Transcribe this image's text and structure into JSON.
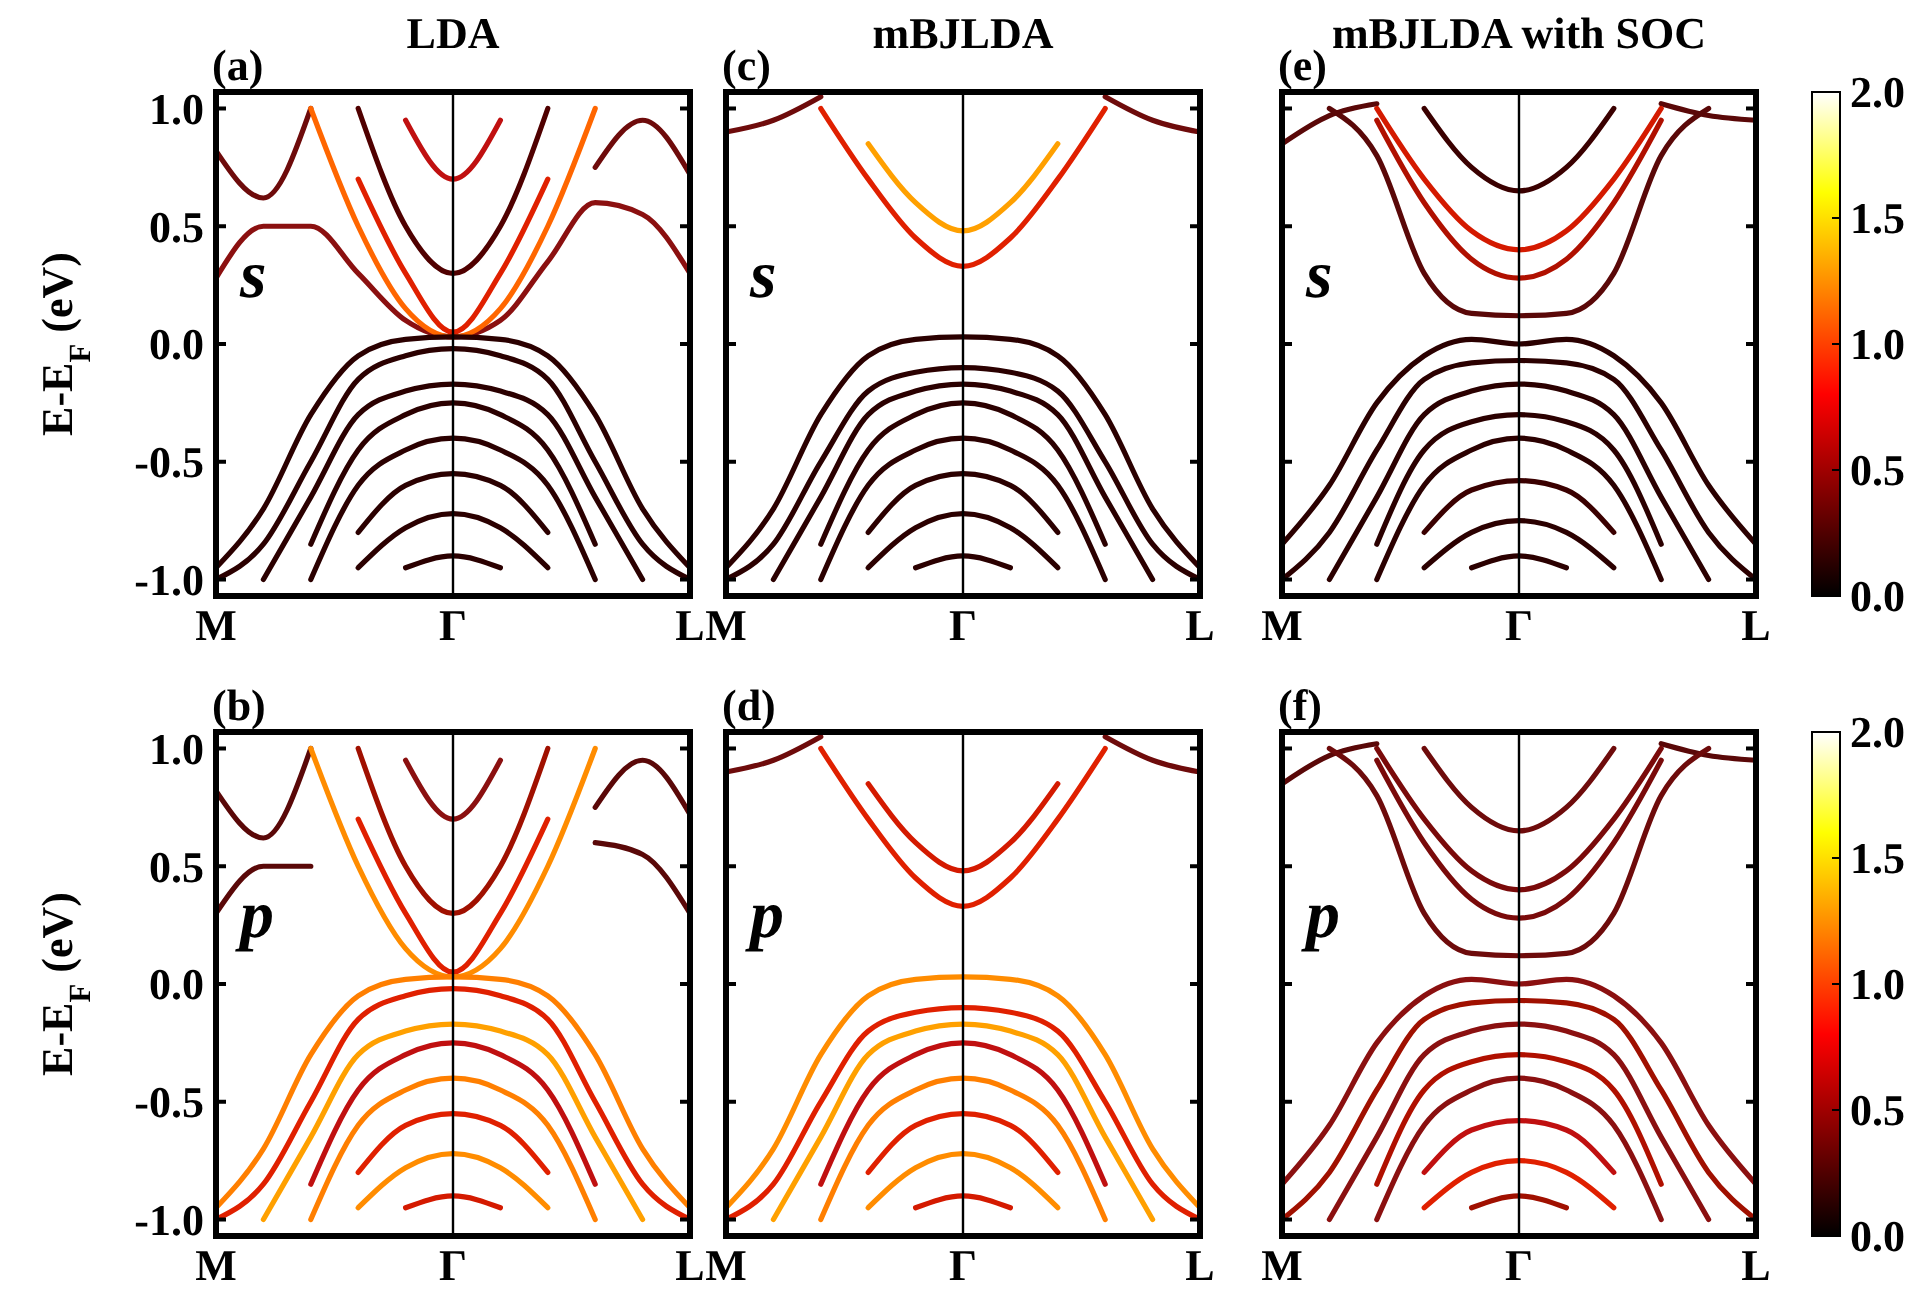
{
  "chart_data": [
    {
      "type": "line",
      "title": "LDA",
      "ylabel": "E-E$_{F}$ (eV)",
      "annotations": [
        "(a)",
        "s"
      ],
      "categories": [
        "M",
        null,
        null,
        null,
        null,
        "Γ",
        null,
        null,
        null,
        null,
        "L"
      ],
      "ylim": [
        -1.07,
        1.07
      ],
      "yticks": [
        {
          "value": 1,
          "label": "1.0"
        },
        {
          "value": 0.5,
          "label": "0.5"
        },
        {
          "value": 0,
          "label": "0.0"
        },
        {
          "value": -0.5,
          "label": "-0.5"
        },
        {
          "value": -1,
          "label": "-1.0"
        }
      ],
      "ref_lines": [
        {
          "axis": "x",
          "value": "Γ",
          "label": null,
          "color": "#000000"
        }
      ],
      "grid": false,
      "series": [
        {
          "color": "#6e0b0b",
          "values": [
            0.82,
            0.62,
            1.0,
            null,
            null,
            null,
            null,
            null,
            0.75,
            0.95,
            0.72
          ]
        },
        {
          "color": "#8b1010",
          "values": [
            0.28,
            0.5,
            0.5,
            0.3,
            0.1,
            0.03,
            0.1,
            0.35,
            0.6,
            0.55,
            0.3
          ]
        },
        {
          "color": "#ff6600",
          "values": [
            null,
            null,
            1.0,
            0.5,
            0.15,
            0.03,
            0.15,
            0.5,
            1.0,
            null,
            null
          ]
        },
        {
          "color": "#e02000",
          "values": [
            null,
            null,
            null,
            0.7,
            0.3,
            0.05,
            0.3,
            0.7,
            null,
            null,
            null
          ]
        },
        {
          "color": "#500000",
          "values": [
            null,
            null,
            null,
            1.0,
            0.5,
            0.3,
            0.5,
            1.0,
            null,
            null,
            null
          ]
        },
        {
          "color": "#c01010",
          "values": [
            null,
            null,
            null,
            null,
            0.95,
            0.7,
            0.95,
            null,
            null,
            null,
            null
          ]
        },
        {
          "color": "#2b0000",
          "values": [
            -0.95,
            -0.7,
            -0.3,
            -0.05,
            0.02,
            0.03,
            0.02,
            -0.05,
            -0.3,
            -0.7,
            -0.95
          ]
        },
        {
          "color": "#2b0000",
          "values": [
            -1.0,
            -0.85,
            -0.5,
            -0.15,
            -0.05,
            -0.02,
            -0.05,
            -0.15,
            -0.5,
            -0.85,
            -1.0
          ]
        },
        {
          "color": "#2b0000",
          "values": [
            null,
            -1.0,
            -0.65,
            -0.3,
            -0.2,
            -0.17,
            -0.2,
            -0.3,
            -0.65,
            -1.0,
            null
          ]
        },
        {
          "color": "#2b0000",
          "values": [
            null,
            null,
            -0.85,
            -0.45,
            -0.3,
            -0.25,
            -0.3,
            -0.45,
            -0.85,
            null,
            null
          ]
        },
        {
          "color": "#2b0000",
          "values": [
            null,
            null,
            -1.0,
            -0.6,
            -0.45,
            -0.4,
            -0.45,
            -0.6,
            -1.0,
            null,
            null
          ]
        },
        {
          "color": "#2b0000",
          "values": [
            null,
            null,
            null,
            -0.8,
            -0.6,
            -0.55,
            -0.6,
            -0.8,
            null,
            null,
            null
          ]
        },
        {
          "color": "#2b0000",
          "values": [
            null,
            null,
            null,
            -0.95,
            -0.78,
            -0.72,
            -0.78,
            -0.95,
            null,
            null,
            null
          ]
        },
        {
          "color": "#2b0000",
          "values": [
            null,
            null,
            null,
            null,
            -0.95,
            -0.9,
            -0.95,
            null,
            null,
            null,
            null
          ]
        }
      ]
    },
    {
      "type": "line",
      "title": "mBJLDA",
      "annotations": [
        "(c)",
        "s"
      ],
      "categories": [
        "M",
        null,
        null,
        null,
        null,
        "Γ",
        null,
        null,
        null,
        null,
        "L"
      ],
      "ylim": [
        -1.07,
        1.07
      ],
      "yticks": [
        {
          "value": 1,
          "label": null
        },
        {
          "value": 0.5,
          "label": null
        },
        {
          "value": 0,
          "label": null
        },
        {
          "value": -0.5,
          "label": null
        },
        {
          "value": -1,
          "label": null
        }
      ],
      "tick_labels": "x",
      "ref_lines": [
        {
          "axis": "x",
          "value": "Γ",
          "label": null,
          "color": "#000000"
        }
      ],
      "grid": false,
      "series": [
        {
          "color": "#6e0b0b",
          "values": [
            0.9,
            0.95,
            1.05,
            null,
            null,
            null,
            null,
            null,
            1.05,
            0.95,
            0.9
          ]
        },
        {
          "color": "#e02000",
          "values": [
            null,
            null,
            1.0,
            0.7,
            0.45,
            0.33,
            0.45,
            0.7,
            1.0,
            null,
            null
          ]
        },
        {
          "color": "#ffa000",
          "values": [
            null,
            null,
            null,
            0.85,
            0.6,
            0.48,
            0.6,
            0.85,
            null,
            null,
            null
          ]
        },
        {
          "color": "#2b0000",
          "values": [
            -0.95,
            -0.7,
            -0.3,
            -0.05,
            0.02,
            0.03,
            0.02,
            -0.05,
            -0.3,
            -0.7,
            -0.95
          ]
        },
        {
          "color": "#2b0000",
          "values": [
            -1.0,
            -0.85,
            -0.5,
            -0.2,
            -0.12,
            -0.1,
            -0.12,
            -0.2,
            -0.5,
            -0.85,
            -1.0
          ]
        },
        {
          "color": "#2b0000",
          "values": [
            null,
            -1.0,
            -0.65,
            -0.3,
            -0.2,
            -0.17,
            -0.2,
            -0.3,
            -0.65,
            -1.0,
            null
          ]
        },
        {
          "color": "#2b0000",
          "values": [
            null,
            null,
            -0.85,
            -0.45,
            -0.3,
            -0.25,
            -0.3,
            -0.45,
            -0.85,
            null,
            null
          ]
        },
        {
          "color": "#2b0000",
          "values": [
            null,
            null,
            -1.0,
            -0.6,
            -0.45,
            -0.4,
            -0.45,
            -0.6,
            -1.0,
            null,
            null
          ]
        },
        {
          "color": "#2b0000",
          "values": [
            null,
            null,
            null,
            -0.8,
            -0.6,
            -0.55,
            -0.6,
            -0.8,
            null,
            null,
            null
          ]
        },
        {
          "color": "#2b0000",
          "values": [
            null,
            null,
            null,
            -0.95,
            -0.78,
            -0.72,
            -0.78,
            -0.95,
            null,
            null,
            null
          ]
        },
        {
          "color": "#2b0000",
          "values": [
            null,
            null,
            null,
            null,
            -0.95,
            -0.9,
            -0.95,
            null,
            null,
            null,
            null
          ]
        }
      ]
    },
    {
      "type": "line",
      "title": "mBJLDA with SOC",
      "annotations": [
        "(e)",
        "s"
      ],
      "categories": [
        "M",
        null,
        null,
        null,
        null,
        "Γ",
        null,
        null,
        null,
        null,
        "L"
      ],
      "ylim": [
        -1.07,
        1.07
      ],
      "yticks": [
        {
          "value": 1,
          "label": null
        },
        {
          "value": 0.5,
          "label": null
        },
        {
          "value": 0,
          "label": null
        },
        {
          "value": -0.5,
          "label": null
        },
        {
          "value": -1,
          "label": null
        }
      ],
      "tick_labels": "x",
      "clim": [
        0,
        2
      ],
      "cticks": [
        {
          "value": 0,
          "label": "0.0"
        },
        {
          "value": 0.5,
          "label": "0.5"
        },
        {
          "value": 1,
          "label": "1.0"
        },
        {
          "value": 1.5,
          "label": "1.5"
        },
        {
          "value": 2,
          "label": "2.0"
        }
      ],
      "ref_lines": [
        {
          "axis": "x",
          "value": "Γ",
          "label": null,
          "color": "#000000"
        }
      ],
      "grid": false,
      "series": [
        {
          "color": "#5a0808",
          "values": [
            0.85,
            0.97,
            1.02,
            null,
            null,
            null,
            null,
            null,
            1.02,
            0.97,
            0.95
          ]
        },
        {
          "color": "#3a0000",
          "values": [
            null,
            null,
            null,
            1.0,
            0.75,
            0.65,
            0.75,
            1.0,
            null,
            null,
            null
          ]
        },
        {
          "color": "#d41a00",
          "values": [
            null,
            null,
            1.0,
            0.7,
            0.48,
            0.4,
            0.48,
            0.7,
            1.0,
            null,
            null
          ]
        },
        {
          "color": "#b01000",
          "values": [
            null,
            null,
            0.95,
            0.6,
            0.36,
            0.28,
            0.36,
            0.6,
            0.95,
            null,
            null
          ]
        },
        {
          "color": "#5a0808",
          "values": [
            null,
            1.0,
            0.8,
            0.3,
            0.13,
            0.12,
            0.13,
            0.3,
            0.8,
            1.0,
            null
          ]
        },
        {
          "color": "#2b0000",
          "values": [
            -0.85,
            -0.6,
            -0.25,
            -0.05,
            0.02,
            0.0,
            0.02,
            -0.05,
            -0.25,
            -0.6,
            -0.85
          ]
        },
        {
          "color": "#2b0000",
          "values": [
            -1.0,
            -0.8,
            -0.45,
            -0.15,
            -0.08,
            -0.07,
            -0.08,
            -0.15,
            -0.45,
            -0.8,
            -1.0
          ]
        },
        {
          "color": "#2b0000",
          "values": [
            null,
            -1.0,
            -0.65,
            -0.3,
            -0.2,
            -0.17,
            -0.2,
            -0.3,
            -0.65,
            -1.0,
            null
          ]
        },
        {
          "color": "#2b0000",
          "values": [
            null,
            null,
            -0.85,
            -0.45,
            -0.33,
            -0.3,
            -0.33,
            -0.45,
            -0.85,
            null,
            null
          ]
        },
        {
          "color": "#2b0000",
          "values": [
            null,
            null,
            -1.0,
            -0.6,
            -0.45,
            -0.4,
            -0.45,
            -0.6,
            -1.0,
            null,
            null
          ]
        },
        {
          "color": "#3a0000",
          "values": [
            null,
            null,
            null,
            -0.8,
            -0.62,
            -0.58,
            -0.62,
            -0.8,
            null,
            null,
            null
          ]
        },
        {
          "color": "#2b0000",
          "values": [
            null,
            null,
            null,
            -0.95,
            -0.8,
            -0.75,
            -0.8,
            -0.95,
            null,
            null,
            null
          ]
        },
        {
          "color": "#2b0000",
          "values": [
            null,
            null,
            null,
            null,
            -0.95,
            -0.9,
            -0.95,
            null,
            null,
            null,
            null
          ]
        }
      ]
    },
    {
      "type": "line",
      "ylabel": "E-E$_{F}$ (eV)",
      "annotations": [
        "(b)",
        "p"
      ],
      "categories": [
        "M",
        null,
        null,
        null,
        null,
        "Γ",
        null,
        null,
        null,
        null,
        "L"
      ],
      "ylim": [
        -1.07,
        1.07
      ],
      "yticks": [
        {
          "value": 1,
          "label": "1.0"
        },
        {
          "value": 0.5,
          "label": "0.5"
        },
        {
          "value": 0,
          "label": "0.0"
        },
        {
          "value": -0.5,
          "label": "-0.5"
        },
        {
          "value": -1,
          "label": "-1.0"
        }
      ],
      "ref_lines": [
        {
          "axis": "x",
          "value": "Γ",
          "label": null,
          "color": "#000000"
        }
      ],
      "grid": false,
      "series": [
        {
          "color": "#5a0808",
          "values": [
            0.82,
            0.62,
            1.0,
            null,
            null,
            null,
            null,
            null,
            0.75,
            0.95,
            0.72
          ]
        },
        {
          "color": "#5a0808",
          "values": [
            0.3,
            0.5,
            0.5,
            null,
            null,
            null,
            null,
            null,
            0.6,
            0.55,
            0.3
          ]
        },
        {
          "color": "#ff8c00",
          "values": [
            null,
            null,
            1.0,
            0.5,
            0.15,
            0.03,
            0.15,
            0.5,
            1.0,
            null,
            null
          ]
        },
        {
          "color": "#e02000",
          "values": [
            null,
            null,
            null,
            0.7,
            0.3,
            0.05,
            0.3,
            0.7,
            null,
            null,
            null
          ]
        },
        {
          "color": "#a01000",
          "values": [
            null,
            null,
            null,
            1.0,
            0.5,
            0.3,
            0.5,
            1.0,
            null,
            null,
            null
          ]
        },
        {
          "color": "#8b1010",
          "values": [
            null,
            null,
            null,
            null,
            0.95,
            0.7,
            0.95,
            null,
            null,
            null,
            null
          ]
        },
        {
          "color": "#ff7f00",
          "values": [
            -0.95,
            -0.7,
            -0.3,
            -0.05,
            0.02,
            0.03,
            0.02,
            -0.05,
            -0.3,
            -0.7,
            -0.95
          ]
        },
        {
          "color": "#e02000",
          "values": [
            -1.0,
            -0.85,
            -0.5,
            -0.15,
            -0.05,
            -0.02,
            -0.05,
            -0.15,
            -0.5,
            -0.85,
            -1.0
          ]
        },
        {
          "color": "#ffa000",
          "values": [
            null,
            -1.0,
            -0.65,
            -0.3,
            -0.2,
            -0.17,
            -0.2,
            -0.3,
            -0.65,
            -1.0,
            null
          ]
        },
        {
          "color": "#c01010",
          "values": [
            null,
            null,
            -0.85,
            -0.45,
            -0.3,
            -0.25,
            -0.3,
            -0.45,
            -0.85,
            null,
            null
          ]
        },
        {
          "color": "#ff7f00",
          "values": [
            null,
            null,
            -1.0,
            -0.6,
            -0.45,
            -0.4,
            -0.45,
            -0.6,
            -1.0,
            null,
            null
          ]
        },
        {
          "color": "#e02000",
          "values": [
            null,
            null,
            null,
            -0.8,
            -0.6,
            -0.55,
            -0.6,
            -0.8,
            null,
            null,
            null
          ]
        },
        {
          "color": "#ff8c00",
          "values": [
            null,
            null,
            null,
            -0.95,
            -0.78,
            -0.72,
            -0.78,
            -0.95,
            null,
            null,
            null
          ]
        },
        {
          "color": "#d41a00",
          "values": [
            null,
            null,
            null,
            null,
            -0.95,
            -0.9,
            -0.95,
            null,
            null,
            null,
            null
          ]
        }
      ]
    },
    {
      "type": "line",
      "annotations": [
        "(d)",
        "p"
      ],
      "categories": [
        "M",
        null,
        null,
        null,
        null,
        "Γ",
        null,
        null,
        null,
        null,
        "L"
      ],
      "ylim": [
        -1.07,
        1.07
      ],
      "yticks": [
        {
          "value": 1,
          "label": null
        },
        {
          "value": 0.5,
          "label": null
        },
        {
          "value": 0,
          "label": null
        },
        {
          "value": -0.5,
          "label": null
        },
        {
          "value": -1,
          "label": null
        }
      ],
      "tick_labels": "x",
      "ref_lines": [
        {
          "axis": "x",
          "value": "Γ",
          "label": null,
          "color": "#000000"
        }
      ],
      "grid": false,
      "series": [
        {
          "color": "#6e0b0b",
          "values": [
            0.9,
            0.95,
            1.05,
            null,
            null,
            null,
            null,
            null,
            1.05,
            0.95,
            0.9
          ]
        },
        {
          "color": "#e02000",
          "values": [
            null,
            null,
            1.0,
            0.7,
            0.45,
            0.33,
            0.45,
            0.7,
            1.0,
            null,
            null
          ]
        },
        {
          "color": "#d41a00",
          "values": [
            null,
            null,
            null,
            0.85,
            0.6,
            0.48,
            0.6,
            0.85,
            null,
            null,
            null
          ]
        },
        {
          "color": "#ff8c00",
          "values": [
            -0.95,
            -0.7,
            -0.3,
            -0.05,
            0.02,
            0.03,
            0.02,
            -0.05,
            -0.3,
            -0.7,
            -0.95
          ]
        },
        {
          "color": "#e02000",
          "values": [
            -1.0,
            -0.85,
            -0.5,
            -0.2,
            -0.12,
            -0.1,
            -0.12,
            -0.2,
            -0.5,
            -0.85,
            -1.0
          ]
        },
        {
          "color": "#ffa000",
          "values": [
            null,
            -1.0,
            -0.65,
            -0.3,
            -0.2,
            -0.17,
            -0.2,
            -0.3,
            -0.65,
            -1.0,
            null
          ]
        },
        {
          "color": "#c01010",
          "values": [
            null,
            null,
            -0.85,
            -0.45,
            -0.3,
            -0.25,
            -0.3,
            -0.45,
            -0.85,
            null,
            null
          ]
        },
        {
          "color": "#ff7f00",
          "values": [
            null,
            null,
            -1.0,
            -0.6,
            -0.45,
            -0.4,
            -0.45,
            -0.6,
            -1.0,
            null,
            null
          ]
        },
        {
          "color": "#e02000",
          "values": [
            null,
            null,
            null,
            -0.8,
            -0.6,
            -0.55,
            -0.6,
            -0.8,
            null,
            null,
            null
          ]
        },
        {
          "color": "#ff8c00",
          "values": [
            null,
            null,
            null,
            -0.95,
            -0.78,
            -0.72,
            -0.78,
            -0.95,
            null,
            null,
            null
          ]
        },
        {
          "color": "#d41a00",
          "values": [
            null,
            null,
            null,
            null,
            -0.95,
            -0.9,
            -0.95,
            null,
            null,
            null,
            null
          ]
        }
      ]
    },
    {
      "type": "line",
      "annotations": [
        "(f)",
        "p"
      ],
      "categories": [
        "M",
        null,
        null,
        null,
        null,
        "Γ",
        null,
        null,
        null,
        null,
        "L"
      ],
      "ylim": [
        -1.07,
        1.07
      ],
      "yticks": [
        {
          "value": 1,
          "label": null
        },
        {
          "value": 0.5,
          "label": null
        },
        {
          "value": 0,
          "label": null
        },
        {
          "value": -0.5,
          "label": null
        },
        {
          "value": -1,
          "label": null
        }
      ],
      "tick_labels": "x",
      "clim": [
        0,
        2
      ],
      "cticks": [
        {
          "value": 0,
          "label": "0.0"
        },
        {
          "value": 0.5,
          "label": "0.5"
        },
        {
          "value": 1,
          "label": "1.0"
        },
        {
          "value": 1.5,
          "label": "1.5"
        },
        {
          "value": 2,
          "label": "2.0"
        }
      ],
      "ref_lines": [
        {
          "axis": "x",
          "value": "Γ",
          "label": null,
          "color": "#000000"
        }
      ],
      "grid": false,
      "series": [
        {
          "color": "#5a0808",
          "values": [
            0.85,
            0.97,
            1.02,
            null,
            null,
            null,
            null,
            null,
            1.02,
            0.97,
            0.95
          ]
        },
        {
          "color": "#6e0b0b",
          "values": [
            null,
            null,
            null,
            1.0,
            0.75,
            0.65,
            0.75,
            1.0,
            null,
            null,
            null
          ]
        },
        {
          "color": "#7a0a0a",
          "values": [
            null,
            null,
            1.0,
            0.7,
            0.48,
            0.4,
            0.48,
            0.7,
            1.0,
            null,
            null
          ]
        },
        {
          "color": "#7a0a0a",
          "values": [
            null,
            null,
            0.95,
            0.6,
            0.36,
            0.28,
            0.36,
            0.6,
            0.95,
            null,
            null
          ]
        },
        {
          "color": "#6e0b0b",
          "values": [
            null,
            1.0,
            0.8,
            0.3,
            0.13,
            0.12,
            0.13,
            0.3,
            0.8,
            1.0,
            null
          ]
        },
        {
          "color": "#8b1010",
          "values": [
            -0.85,
            -0.6,
            -0.25,
            -0.05,
            0.02,
            0.0,
            0.02,
            -0.05,
            -0.25,
            -0.6,
            -0.85
          ]
        },
        {
          "color": "#a01000",
          "values": [
            -1.0,
            -0.8,
            -0.45,
            -0.15,
            -0.08,
            -0.07,
            -0.08,
            -0.15,
            -0.45,
            -0.8,
            -1.0
          ]
        },
        {
          "color": "#8b1010",
          "values": [
            null,
            -1.0,
            -0.65,
            -0.3,
            -0.2,
            -0.17,
            -0.2,
            -0.3,
            -0.65,
            -1.0,
            null
          ]
        },
        {
          "color": "#b01000",
          "values": [
            null,
            null,
            -0.85,
            -0.45,
            -0.33,
            -0.3,
            -0.33,
            -0.45,
            -0.85,
            null,
            null
          ]
        },
        {
          "color": "#8b1010",
          "values": [
            null,
            null,
            -1.0,
            -0.6,
            -0.45,
            -0.4,
            -0.45,
            -0.6,
            -1.0,
            null,
            null
          ]
        },
        {
          "color": "#c01010",
          "values": [
            null,
            null,
            null,
            -0.8,
            -0.62,
            -0.58,
            -0.62,
            -0.8,
            null,
            null,
            null
          ]
        },
        {
          "color": "#e02000",
          "values": [
            null,
            null,
            null,
            -0.95,
            -0.8,
            -0.75,
            -0.8,
            -0.95,
            null,
            null,
            null
          ]
        },
        {
          "color": "#a01000",
          "values": [
            null,
            null,
            null,
            null,
            -0.95,
            -0.9,
            -0.95,
            null,
            null,
            null,
            null
          ]
        }
      ]
    }
  ]
}
